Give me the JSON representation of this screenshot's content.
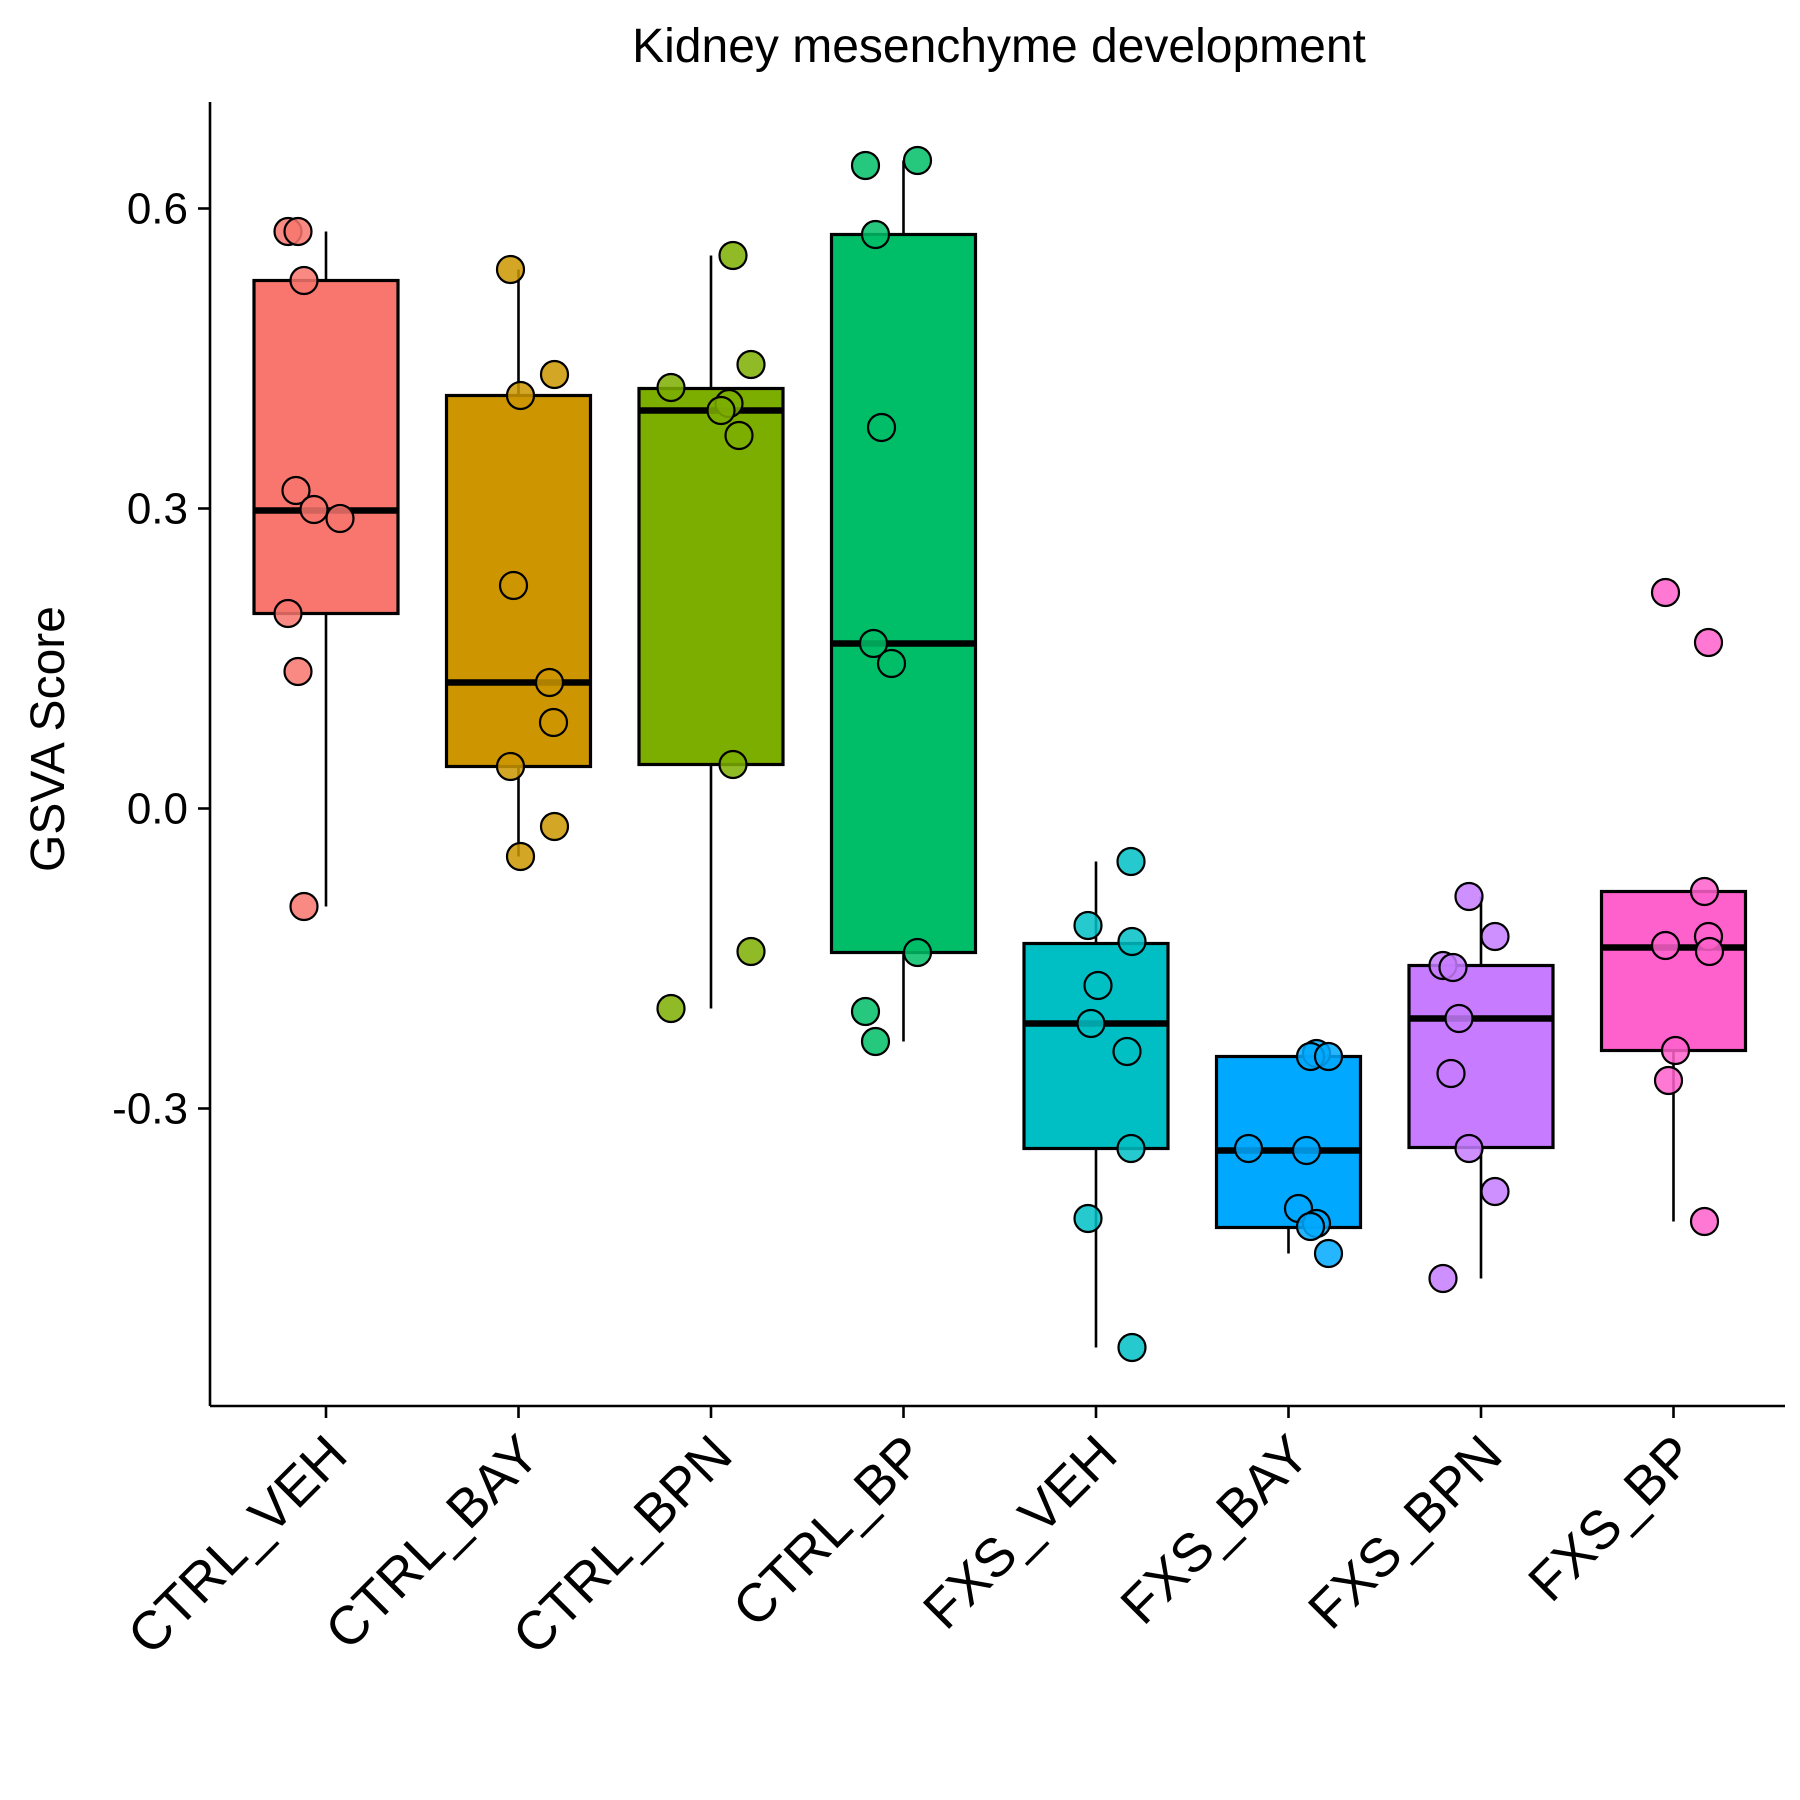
{
  "chart_data": {
    "type": "box",
    "title": "Kidney mesenchyme development",
    "xlabel": "",
    "ylabel": "GSVA Score",
    "ylim": [
      -0.6,
      0.71
    ],
    "yticks": [
      {
        "value": 0.6,
        "label": "0.6"
      },
      {
        "value": 0.3,
        "label": "0.3"
      },
      {
        "value": 0.0,
        "label": "0.0"
      },
      {
        "value": -0.3,
        "label": "-0.3"
      }
    ],
    "grid": false,
    "legend": "none",
    "categories": [
      "CTRL_VEH",
      "CTRL_BAY",
      "CTRL_BPN",
      "CTRL_BP",
      "FXS_VEH",
      "FXS_BAY",
      "FXS_BPN",
      "FXS_BP"
    ],
    "colors": [
      "#F8766D",
      "#CD9600",
      "#7CAE00",
      "#00BE67",
      "#00BFC4",
      "#00A9FF",
      "#C77CFF",
      "#FF61CC"
    ],
    "boxes": [
      {
        "group": "CTRL_VEH",
        "whisker_low": -0.098,
        "q1": 0.195,
        "median": 0.298,
        "q3": 0.528,
        "whisker_high": 0.577
      },
      {
        "group": "CTRL_BAY",
        "whisker_low": -0.048,
        "q1": 0.042,
        "median": 0.126,
        "q3": 0.413,
        "whisker_high": 0.539
      },
      {
        "group": "CTRL_BPN",
        "whisker_low": -0.2,
        "q1": 0.044,
        "median": 0.398,
        "q3": 0.42,
        "whisker_high": 0.553
      },
      {
        "group": "CTRL_BP",
        "whisker_low": -0.233,
        "q1": -0.144,
        "median": 0.165,
        "q3": 0.574,
        "whisker_high": 0.648
      },
      {
        "group": "FXS_VEH",
        "whisker_low": -0.539,
        "q1": -0.34,
        "median": -0.215,
        "q3": -0.135,
        "whisker_high": -0.053
      },
      {
        "group": "FXS_BAY",
        "whisker_low": -0.445,
        "q1": -0.419,
        "median": -0.342,
        "q3": -0.248,
        "whisker_high": -0.248
      },
      {
        "group": "FXS_BPN",
        "whisker_low": -0.47,
        "q1": -0.339,
        "median": -0.21,
        "q3": -0.157,
        "whisker_high": -0.088
      },
      {
        "group": "FXS_BP",
        "whisker_low": -0.413,
        "q1": -0.242,
        "median": -0.139,
        "q3": -0.083,
        "whisker_high": -0.083
      }
    ],
    "points": [
      [
        0.577,
        0.577,
        0.528,
        0.318,
        0.299,
        0.29,
        0.195,
        0.137,
        -0.098
      ],
      [
        0.539,
        0.434,
        0.413,
        0.223,
        0.126,
        0.086,
        0.042,
        -0.018,
        -0.048
      ],
      [
        0.553,
        0.444,
        0.421,
        0.405,
        0.398,
        0.373,
        0.044,
        -0.143,
        -0.2
      ],
      [
        0.648,
        0.643,
        0.574,
        0.381,
        0.165,
        0.145,
        -0.144,
        -0.203,
        -0.233
      ],
      [
        -0.053,
        -0.117,
        -0.133,
        -0.177,
        -0.215,
        -0.243,
        -0.34,
        -0.41,
        -0.539
      ],
      [
        -0.245,
        -0.248,
        -0.248,
        -0.34,
        -0.342,
        -0.4,
        -0.415,
        -0.418,
        -0.445
      ],
      [
        -0.088,
        -0.128,
        -0.157,
        -0.159,
        -0.21,
        -0.265,
        -0.34,
        -0.383,
        -0.47
      ],
      [
        -0.083,
        -0.128,
        -0.137,
        -0.143,
        -0.242,
        -0.272,
        -0.413,
        0.166,
        0.216
      ]
    ]
  }
}
